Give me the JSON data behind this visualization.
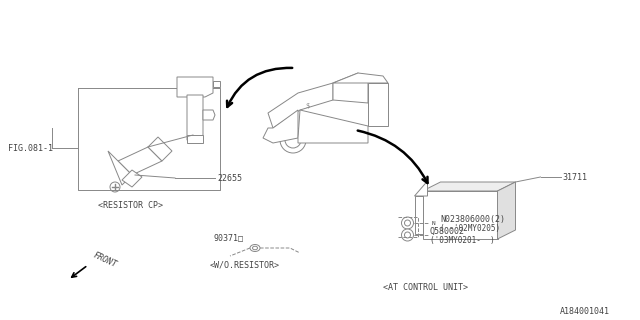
{
  "bg_color": "#ffffff",
  "line_color": "#888888",
  "text_color": "#444444",
  "arrow_color": "#000000",
  "fig_ref": "FIG.081-1",
  "diagram_id": "A184001041",
  "part_22655": "22655",
  "part_31711": "31711",
  "part_90371": "90371□",
  "part_N": "N023806000(2)",
  "part_N_sub": "( -'02MY0205)",
  "part_Q": "Q580002",
  "part_Q_sub": "('03MY0201-  )",
  "label_resistor_cp": "<RESISTOR CP>",
  "label_wo_resistor": "<W/O.RESISTOR>",
  "label_at_control": "<AT CONTROL UNIT>",
  "label_front": "FRONT",
  "font_size": 6.0,
  "lw": 0.7
}
